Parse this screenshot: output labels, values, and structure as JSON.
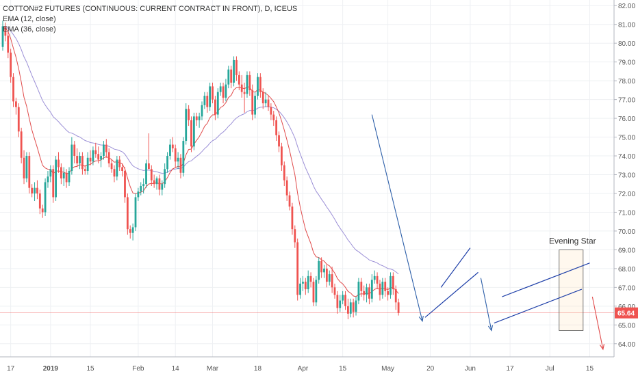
{
  "chart_data": {
    "type": "candlestick",
    "title": "COTTON#2 FUTURES (CONTINUOUS: CURRENT CONTRACT IN FRONT), D, ICEUS",
    "indicators": [
      "EMA (12, close)",
      "EMA (36, close)"
    ],
    "ylim": [
      63.3,
      82.3
    ],
    "y_ticks": [
      "82.00",
      "81.00",
      "80.00",
      "79.00",
      "78.00",
      "77.00",
      "76.00",
      "75.00",
      "74.00",
      "73.00",
      "72.00",
      "71.00",
      "70.00",
      "69.00",
      "68.00",
      "67.00",
      "66.00",
      "65.00",
      "64.00"
    ],
    "x_ticks": [
      "17",
      "2019",
      "15",
      "Feb",
      "14",
      "Mar",
      "18",
      "Apr",
      "15",
      "May",
      "20",
      "Jun",
      "17",
      "Jul",
      "15"
    ],
    "x_tick_index": [
      3,
      18,
      33,
      51,
      65,
      79,
      96,
      113,
      128,
      145,
      161,
      176,
      191,
      206,
      221
    ],
    "last_price": "65.64",
    "last_price_value": 65.64,
    "annotation": "Evening Star",
    "ohlc": [
      [
        79.8,
        81.2,
        79.6,
        80.9
      ],
      [
        80.9,
        81.1,
        80.1,
        80.4
      ],
      [
        80.4,
        80.6,
        79.2,
        79.5
      ],
      [
        79.5,
        79.7,
        77.9,
        78.2
      ],
      [
        78.2,
        78.4,
        76.6,
        76.9
      ],
      [
        76.9,
        77.1,
        76.2,
        76.6
      ],
      [
        76.6,
        76.8,
        75.0,
        75.3
      ],
      [
        75.3,
        75.5,
        73.6,
        73.9
      ],
      [
        73.9,
        74.3,
        72.5,
        72.8
      ],
      [
        72.8,
        74.2,
        72.6,
        74.0
      ],
      [
        74.0,
        74.2,
        72.0,
        72.3
      ],
      [
        72.3,
        72.5,
        71.8,
        72.0
      ],
      [
        72.0,
        72.6,
        71.6,
        72.3
      ],
      [
        72.3,
        72.7,
        71.7,
        72.0
      ],
      [
        72.0,
        72.2,
        70.9,
        71.2
      ],
      [
        71.2,
        71.4,
        70.7,
        71.0
      ],
      [
        71.0,
        72.8,
        70.8,
        72.6
      ],
      [
        72.6,
        73.2,
        72.3,
        72.9
      ],
      [
        72.9,
        73.5,
        72.6,
        73.3
      ],
      [
        73.3,
        73.5,
        71.5,
        71.8
      ],
      [
        71.8,
        74.0,
        71.6,
        73.8
      ],
      [
        73.8,
        74.2,
        73.1,
        73.4
      ],
      [
        73.4,
        73.6,
        72.5,
        72.8
      ],
      [
        72.8,
        73.4,
        72.4,
        73.1
      ],
      [
        73.1,
        73.3,
        72.3,
        72.6
      ],
      [
        72.6,
        73.4,
        72.4,
        73.2
      ],
      [
        73.2,
        75.0,
        73.0,
        74.6
      ],
      [
        74.6,
        74.8,
        73.6,
        74.0
      ],
      [
        74.0,
        74.4,
        73.4,
        73.6
      ],
      [
        73.6,
        74.2,
        73.3,
        74.0
      ],
      [
        74.0,
        74.2,
        73.0,
        73.3
      ],
      [
        73.3,
        73.5,
        73.0,
        73.2
      ],
      [
        73.2,
        74.2,
        73.0,
        73.9
      ],
      [
        73.9,
        74.3,
        73.5,
        73.7
      ],
      [
        73.7,
        74.5,
        73.5,
        74.3
      ],
      [
        74.3,
        74.7,
        73.9,
        74.1
      ],
      [
        74.1,
        74.5,
        73.6,
        73.8
      ],
      [
        73.8,
        74.2,
        73.4,
        74.0
      ],
      [
        74.0,
        74.8,
        73.8,
        74.6
      ],
      [
        74.6,
        74.9,
        73.9,
        74.2
      ],
      [
        74.2,
        74.4,
        73.4,
        73.6
      ],
      [
        73.6,
        73.8,
        73.1,
        73.3
      ],
      [
        73.3,
        73.5,
        72.6,
        72.9
      ],
      [
        72.9,
        74.0,
        72.7,
        73.8
      ],
      [
        73.8,
        74.0,
        73.2,
        73.4
      ],
      [
        73.4,
        73.6,
        72.9,
        73.2
      ],
      [
        73.2,
        73.4,
        71.5,
        71.8
      ],
      [
        71.8,
        72.0,
        69.8,
        70.1
      ],
      [
        70.1,
        70.3,
        69.6,
        69.9
      ],
      [
        69.9,
        70.4,
        69.5,
        70.2
      ],
      [
        70.2,
        72.0,
        70.0,
        71.8
      ],
      [
        71.8,
        72.3,
        71.6,
        72.1
      ],
      [
        72.1,
        72.6,
        71.9,
        72.4
      ],
      [
        72.4,
        72.8,
        72.0,
        72.5
      ],
      [
        72.5,
        73.8,
        72.3,
        73.6
      ],
      [
        73.6,
        75.2,
        73.4,
        73.3
      ],
      [
        73.3,
        73.5,
        72.4,
        72.7
      ],
      [
        72.7,
        73.0,
        72.3,
        72.5
      ],
      [
        72.5,
        72.9,
        72.2,
        72.8
      ],
      [
        72.8,
        73.0,
        71.9,
        72.2
      ],
      [
        72.2,
        72.7,
        71.9,
        72.5
      ],
      [
        72.5,
        73.6,
        72.3,
        73.3
      ],
      [
        73.3,
        74.2,
        73.1,
        74.0
      ],
      [
        74.0,
        74.9,
        73.8,
        74.6
      ],
      [
        74.6,
        75.0,
        74.2,
        74.4
      ],
      [
        74.4,
        74.6,
        73.4,
        73.7
      ],
      [
        73.7,
        74.2,
        73.3,
        73.9
      ],
      [
        73.9,
        74.1,
        72.8,
        73.1
      ],
      [
        73.1,
        75.0,
        72.9,
        74.8
      ],
      [
        74.8,
        76.8,
        74.6,
        76.5
      ],
      [
        76.5,
        76.7,
        75.6,
        75.9
      ],
      [
        75.9,
        76.1,
        74.2,
        74.5
      ],
      [
        74.5,
        76.3,
        74.3,
        76.1
      ],
      [
        76.1,
        76.3,
        75.6,
        75.9
      ],
      [
        75.9,
        76.3,
        75.5,
        76.1
      ],
      [
        76.1,
        76.9,
        75.9,
        76.7
      ],
      [
        76.7,
        77.4,
        76.5,
        77.2
      ],
      [
        77.2,
        77.4,
        76.3,
        76.6
      ],
      [
        76.6,
        77.9,
        76.4,
        77.7
      ],
      [
        77.7,
        77.9,
        76.8,
        77.0
      ],
      [
        77.0,
        77.2,
        75.9,
        76.2
      ],
      [
        76.2,
        77.6,
        76.0,
        77.4
      ],
      [
        77.4,
        77.9,
        77.2,
        77.7
      ],
      [
        77.7,
        77.9,
        76.8,
        77.1
      ],
      [
        77.1,
        78.1,
        76.9,
        77.8
      ],
      [
        77.8,
        78.8,
        77.6,
        78.6
      ],
      [
        78.6,
        78.8,
        77.6,
        77.9
      ],
      [
        77.9,
        79.3,
        77.7,
        79.1
      ],
      [
        79.1,
        79.3,
        78.0,
        78.3
      ],
      [
        78.3,
        78.5,
        77.5,
        77.8
      ],
      [
        77.8,
        78.3,
        77.1,
        77.4
      ],
      [
        77.4,
        77.9,
        76.3,
        77.3
      ],
      [
        77.3,
        78.5,
        77.1,
        78.3
      ],
      [
        78.3,
        78.5,
        77.2,
        77.5
      ],
      [
        77.5,
        77.8,
        75.9,
        76.2
      ],
      [
        76.2,
        77.4,
        76.0,
        77.2
      ],
      [
        77.2,
        78.4,
        77.0,
        78.2
      ],
      [
        78.2,
        78.4,
        77.1,
        77.4
      ],
      [
        77.4,
        77.6,
        76.5,
        76.8
      ],
      [
        76.8,
        77.4,
        76.6,
        77.0
      ],
      [
        77.0,
        77.2,
        76.4,
        76.6
      ],
      [
        76.6,
        76.8,
        75.9,
        76.2
      ],
      [
        76.2,
        76.4,
        75.6,
        75.9
      ],
      [
        75.9,
        76.1,
        74.8,
        75.1
      ],
      [
        75.1,
        75.3,
        74.2,
        74.5
      ],
      [
        74.5,
        74.7,
        73.2,
        73.5
      ],
      [
        73.5,
        73.7,
        72.4,
        72.7
      ],
      [
        72.7,
        72.9,
        71.6,
        71.9
      ],
      [
        71.9,
        72.1,
        71.1,
        71.3
      ],
      [
        71.3,
        71.5,
        69.8,
        70.1
      ],
      [
        70.1,
        70.3,
        69.1,
        69.4
      ],
      [
        69.4,
        69.6,
        66.3,
        66.6
      ],
      [
        66.6,
        67.5,
        66.4,
        67.2
      ],
      [
        67.2,
        67.6,
        66.8,
        67.3
      ],
      [
        67.3,
        67.5,
        66.6,
        66.9
      ],
      [
        66.9,
        67.9,
        66.7,
        67.6
      ],
      [
        67.6,
        67.8,
        67.0,
        67.3
      ],
      [
        67.3,
        67.5,
        66.0,
        66.2
      ],
      [
        66.2,
        67.6,
        66.0,
        67.4
      ],
      [
        67.4,
        68.6,
        67.2,
        68.4
      ],
      [
        68.4,
        68.6,
        67.5,
        67.8
      ],
      [
        67.8,
        68.2,
        67.5,
        68.0
      ],
      [
        68.0,
        68.2,
        67.0,
        67.3
      ],
      [
        67.3,
        67.9,
        67.1,
        67.7
      ],
      [
        67.7,
        68.1,
        66.7,
        67.0
      ],
      [
        67.0,
        67.2,
        66.4,
        66.6
      ],
      [
        66.6,
        66.8,
        65.6,
        65.9
      ],
      [
        65.9,
        66.6,
        65.7,
        66.3
      ],
      [
        66.3,
        66.8,
        66.1,
        66.6
      ],
      [
        66.6,
        66.8,
        65.8,
        66.0
      ],
      [
        66.0,
        66.4,
        65.3,
        65.6
      ],
      [
        65.6,
        66.4,
        65.4,
        66.2
      ],
      [
        66.2,
        66.4,
        65.4,
        65.7
      ],
      [
        65.7,
        66.5,
        65.5,
        66.3
      ],
      [
        66.3,
        67.5,
        66.1,
        67.3
      ],
      [
        67.3,
        67.5,
        66.5,
        66.8
      ],
      [
        66.8,
        67.1,
        66.3,
        66.6
      ],
      [
        66.6,
        67.2,
        66.2,
        67.0
      ],
      [
        67.0,
        67.2,
        66.1,
        66.4
      ],
      [
        66.4,
        67.7,
        66.2,
        67.4
      ],
      [
        67.4,
        67.9,
        67.2,
        67.6
      ],
      [
        67.6,
        67.8,
        66.9,
        67.2
      ],
      [
        67.2,
        67.4,
        66.3,
        66.6
      ],
      [
        66.6,
        67.5,
        66.4,
        67.3
      ],
      [
        67.3,
        67.5,
        66.5,
        66.8
      ],
      [
        66.8,
        67.0,
        66.3,
        66.6
      ],
      [
        66.6,
        67.8,
        66.4,
        67.6
      ],
      [
        67.6,
        67.8,
        66.6,
        66.9
      ],
      [
        66.9,
        67.1,
        65.8,
        66.2
      ],
      [
        66.2,
        66.4,
        65.5,
        65.64
      ]
    ]
  }
}
